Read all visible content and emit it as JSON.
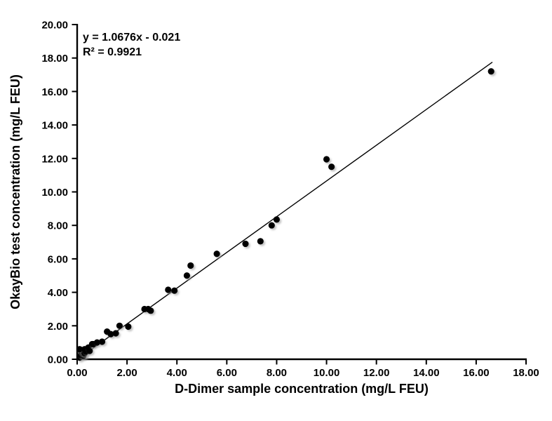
{
  "figure": {
    "background_color": "#ffffff",
    "axis_color": "#000000",
    "marker_color": "#000000",
    "trendline_color": "#000000",
    "shadow_color": "#999999"
  },
  "chart_data": {
    "type": "scatter",
    "title": "",
    "xlabel": "D-Dimer sample concentration (mg/L FEU)",
    "ylabel": "OkayBio test concentration (mg/L FEU)",
    "xlim": [
      0,
      18
    ],
    "ylim": [
      0,
      20
    ],
    "grid": false,
    "legend_position": "none",
    "x_tick_values": [
      0,
      2,
      4,
      6,
      8,
      10,
      12,
      14,
      16,
      18
    ],
    "x_tick_labels": [
      "0.00",
      "2.00",
      "4.00",
      "6.00",
      "8.00",
      "10.00",
      "12.00",
      "14.00",
      "16.00",
      "18.00"
    ],
    "y_tick_values": [
      0,
      2,
      4,
      6,
      8,
      10,
      12,
      14,
      16,
      18,
      20
    ],
    "y_tick_labels": [
      "0.00",
      "2.00",
      "4.00",
      "6.00",
      "8.00",
      "10.00",
      "12.00",
      "14.00",
      "16.00",
      "18.00",
      "20.00"
    ],
    "points": [
      [
        0.1,
        0.1
      ],
      [
        0.15,
        0.25
      ],
      [
        0.25,
        0.2
      ],
      [
        0.2,
        0.4
      ],
      [
        0.15,
        0.5
      ],
      [
        0.1,
        0.6
      ],
      [
        0.3,
        0.35
      ],
      [
        0.3,
        0.6
      ],
      [
        0.35,
        0.45
      ],
      [
        0.45,
        0.7
      ],
      [
        0.5,
        0.5
      ],
      [
        0.6,
        0.9
      ],
      [
        0.65,
        0.9
      ],
      [
        0.8,
        1.0
      ],
      [
        1.0,
        1.05
      ],
      [
        1.2,
        1.65
      ],
      [
        1.35,
        1.5
      ],
      [
        1.55,
        1.55
      ],
      [
        1.7,
        2.0
      ],
      [
        2.05,
        1.95
      ],
      [
        2.7,
        3.0
      ],
      [
        2.85,
        3.0
      ],
      [
        2.95,
        2.9
      ],
      [
        3.65,
        4.15
      ],
      [
        3.9,
        4.1
      ],
      [
        4.4,
        5.0
      ],
      [
        4.55,
        5.6
      ],
      [
        5.6,
        6.3
      ],
      [
        6.75,
        6.9
      ],
      [
        7.35,
        7.05
      ],
      [
        7.8,
        8.0
      ],
      [
        8.0,
        8.35
      ],
      [
        10.0,
        11.95
      ],
      [
        10.2,
        11.5
      ],
      [
        16.6,
        17.2
      ]
    ],
    "trendline": {
      "slope": 1.0676,
      "intercept": -0.021,
      "x_start": 0.08,
      "x_end": 16.65,
      "equation": "y = 1.0676x - 0.021",
      "r_squared": "R² = 0.9921"
    }
  }
}
